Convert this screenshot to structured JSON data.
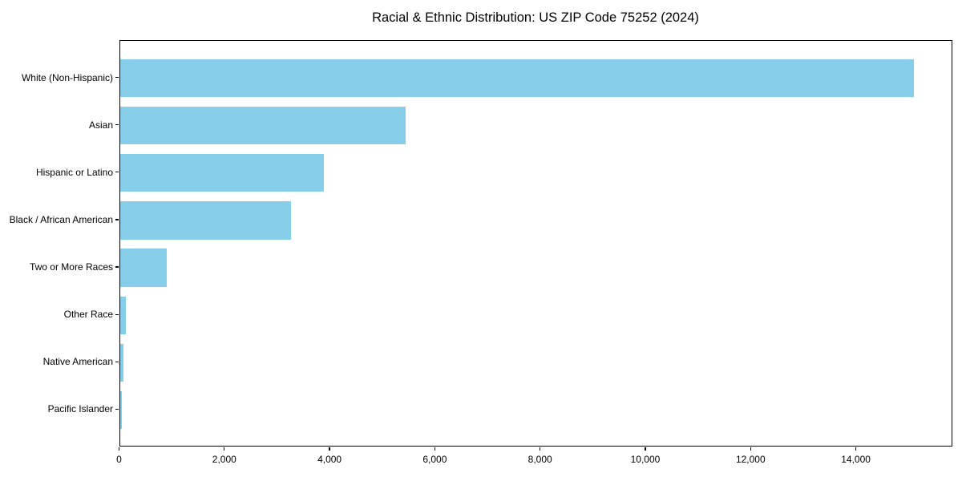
{
  "chart_data": {
    "type": "bar",
    "orientation": "horizontal",
    "title": "Racial & Ethnic Distribution: US ZIP Code 75252 (2024)",
    "categories": [
      "White (Non-Hispanic)",
      "Asian",
      "Hispanic or Latino",
      "Black / African American",
      "Two or More Races",
      "Other Race",
      "Native American",
      "Pacific Islander"
    ],
    "values": [
      15080,
      5430,
      3870,
      3255,
      895,
      120,
      70,
      45
    ],
    "xlabel": "",
    "ylabel": "",
    "xlim": [
      0,
      15834
    ],
    "xticks": [
      0,
      2000,
      4000,
      6000,
      8000,
      10000,
      12000,
      14000
    ],
    "xtick_labels": [
      "0",
      "2,000",
      "4,000",
      "6,000",
      "8,000",
      "10,000",
      "12,000",
      "14,000"
    ],
    "bar_color": "#87CEEB",
    "axis_color": "#000000",
    "text_color": "#000000",
    "background_color": "#ffffff",
    "grid": false,
    "legend": null
  }
}
